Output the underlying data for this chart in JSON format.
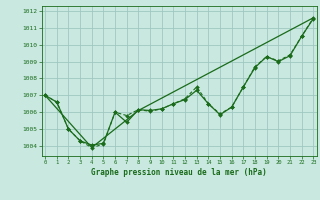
{
  "title": "Graphe pression niveau de la mer (hPa)",
  "xlabel_hours": [
    0,
    1,
    2,
    3,
    4,
    5,
    6,
    7,
    8,
    9,
    10,
    11,
    12,
    13,
    14,
    15,
    16,
    17,
    18,
    19,
    20,
    21,
    22,
    23
  ],
  "ylim": [
    1003.4,
    1012.3
  ],
  "yticks": [
    1004,
    1005,
    1006,
    1007,
    1008,
    1009,
    1010,
    1011,
    1012
  ],
  "xlim": [
    -0.3,
    23.3
  ],
  "bg_color": "#c8e8e0",
  "grid_color": "#a0c8c0",
  "line_color": "#1a6b1a",
  "line1_y": [
    1007.0,
    1006.6,
    1005.0,
    1004.3,
    1003.9,
    1004.1,
    1006.0,
    1005.8,
    1006.15,
    1006.05,
    1006.2,
    1006.5,
    1006.8,
    1007.5,
    1006.5,
    1005.9,
    1006.3,
    1007.5,
    1008.7,
    1009.3,
    1009.05,
    1009.4,
    1010.5,
    1011.6
  ],
  "line2_y": [
    1007.0,
    1006.6,
    1005.0,
    1004.3,
    1004.05,
    1004.15,
    1006.0,
    1005.4,
    1006.15,
    1006.1,
    1006.2,
    1006.5,
    1006.75,
    1007.3,
    1006.5,
    1005.85,
    1006.3,
    1007.5,
    1008.65,
    1009.3,
    1009.0,
    1009.35,
    1010.5,
    1011.55
  ],
  "line3_x": [
    0,
    4,
    8,
    23
  ],
  "line3_y": [
    1007.0,
    1003.9,
    1006.1,
    1011.6
  ]
}
